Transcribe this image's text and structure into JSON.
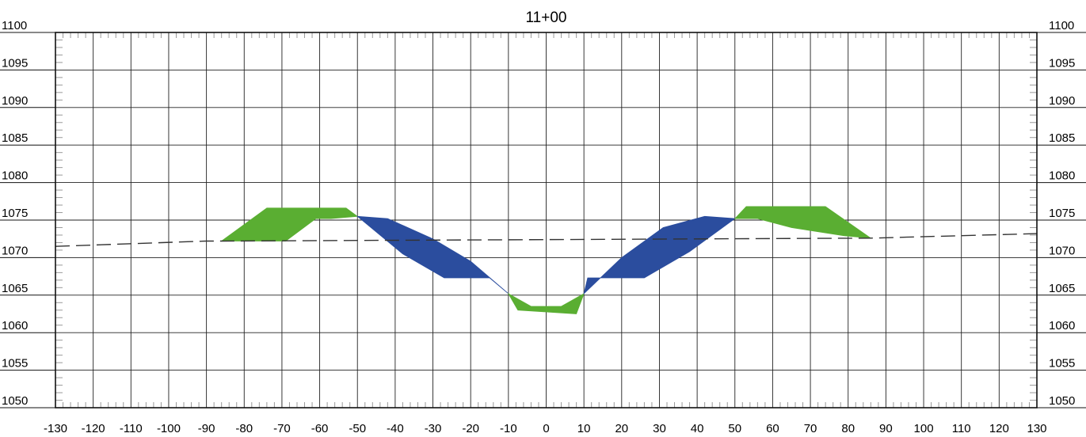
{
  "chart_data": {
    "type": "area",
    "title": "11+00",
    "xlabel": "",
    "ylabel": "",
    "xlim": [
      -130,
      130
    ],
    "ylim": [
      1050,
      1100
    ],
    "x_ticks": [
      -130,
      -120,
      -110,
      -100,
      -90,
      -80,
      -70,
      -60,
      -50,
      -40,
      -30,
      -20,
      -10,
      0,
      10,
      20,
      30,
      40,
      50,
      60,
      70,
      80,
      90,
      100,
      110,
      120,
      130
    ],
    "y_ticks": [
      1050,
      1055,
      1060,
      1065,
      1070,
      1075,
      1080,
      1085,
      1090,
      1095,
      1100
    ],
    "grid": true,
    "colors": {
      "fill_green": "#5aae32",
      "cut_blue": "#2b4d9e",
      "grid_major": "#222222",
      "grid_minor": "#9a9a9a",
      "ground_line": "#333333"
    },
    "series": [
      {
        "type": "line",
        "style": "dashed",
        "points": [
          [
            -130,
            1071.5
          ],
          [
            -90,
            1072.2
          ],
          [
            -86,
            1072.2
          ],
          [
            86,
            1072.6
          ],
          [
            130,
            1073.2
          ]
        ]
      },
      {
        "type": "polygon",
        "color": "fill_green",
        "points": [
          [
            -86,
            1072.2
          ],
          [
            -74,
            1076.6
          ],
          [
            -53,
            1076.6
          ],
          [
            -50,
            1075.5
          ],
          [
            -57,
            1075.2
          ],
          [
            -61,
            1075.2
          ],
          [
            -69,
            1072.2
          ]
        ]
      },
      {
        "type": "polygon",
        "color": "cut_blue",
        "points": [
          [
            -50,
            1075.5
          ],
          [
            -42,
            1075.2
          ],
          [
            -30,
            1072.5
          ],
          [
            -20,
            1069.5
          ],
          [
            -10,
            1065.2
          ],
          [
            -15,
            1067.3
          ],
          [
            -27,
            1067.3
          ],
          [
            -38,
            1070.5
          ]
        ]
      },
      {
        "type": "polygon",
        "color": "fill_green",
        "points": [
          [
            -10,
            1065.2
          ],
          [
            -7.5,
            1063
          ],
          [
            8,
            1062.5
          ],
          [
            10,
            1065.2
          ],
          [
            4,
            1063.5
          ],
          [
            -4,
            1063.5
          ]
        ]
      },
      {
        "type": "polygon",
        "color": "cut_blue",
        "points": [
          [
            10,
            1065.2
          ],
          [
            11,
            1067.3
          ],
          [
            16,
            1067.3
          ],
          [
            26,
            1067.3
          ],
          [
            38,
            1070.8
          ],
          [
            50,
            1075.2
          ],
          [
            42,
            1075.5
          ],
          [
            31,
            1074
          ],
          [
            20,
            1070
          ]
        ]
      },
      {
        "type": "polygon",
        "color": "fill_green",
        "points": [
          [
            50,
            1075.2
          ],
          [
            53,
            1076.8
          ],
          [
            74,
            1076.8
          ],
          [
            86,
            1072.6
          ],
          [
            79,
            1072.9
          ],
          [
            65,
            1074
          ],
          [
            56,
            1075.2
          ]
        ]
      }
    ]
  }
}
